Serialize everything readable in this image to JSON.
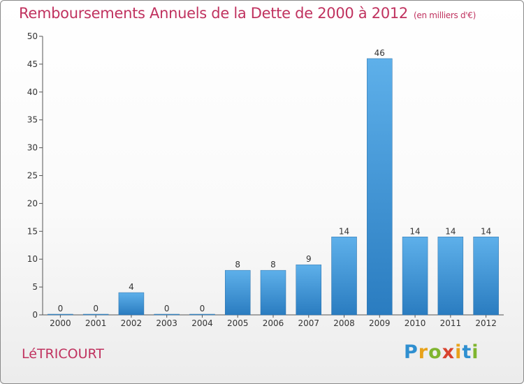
{
  "header": {
    "title": "Remboursements Annuels de la Dette de 2000 à 2012",
    "subtitle": "(en milliers d'€)"
  },
  "footer": {
    "town": "LéTRICOURT",
    "brand": "Proxiti"
  },
  "colors": {
    "title": "#c0325f",
    "bar_top": "#5eb0ea",
    "bar_bottom": "#2a7cc0"
  },
  "chart_data": {
    "type": "bar",
    "title": "Remboursements Annuels de la Dette de 2000 à 2012",
    "subtitle": "(en milliers d'€)",
    "xlabel": "",
    "ylabel": "",
    "categories": [
      "2000",
      "2001",
      "2002",
      "2003",
      "2004",
      "2005",
      "2006",
      "2007",
      "2008",
      "2009",
      "2010",
      "2011",
      "2012"
    ],
    "values": [
      0,
      0,
      4,
      0,
      0,
      8,
      8,
      9,
      14,
      46,
      14,
      14,
      14
    ],
    "ylim": [
      0,
      50
    ],
    "yticks": [
      0,
      5,
      10,
      15,
      20,
      25,
      30,
      35,
      40,
      45,
      50
    ],
    "grid": false,
    "legend": "none"
  }
}
